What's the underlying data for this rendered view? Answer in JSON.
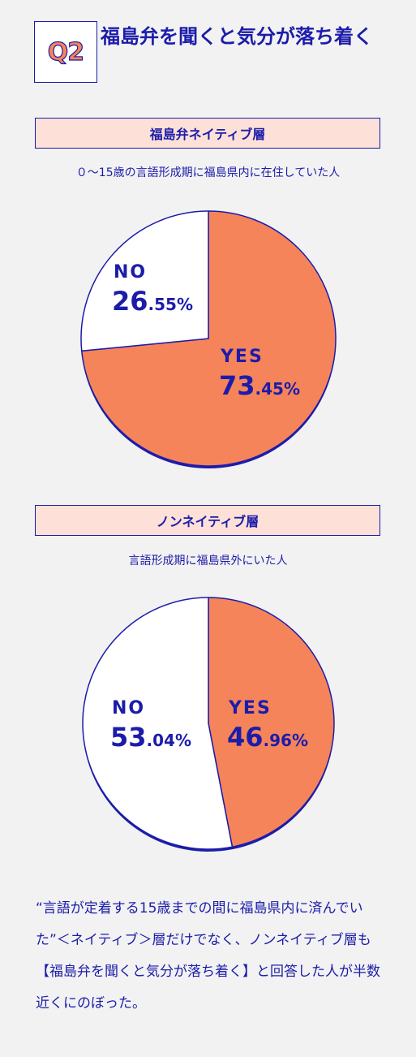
{
  "header": {
    "badge": "Q2",
    "title": "福島弁を聞くと気分が落ち着く"
  },
  "colors": {
    "accent": "#f5845a",
    "ink": "#1c1caa",
    "band": "#fde0d7",
    "background": "#f2f2f2",
    "white": "#ffffff"
  },
  "sections": [
    {
      "band_label": "福島弁ネイティブ層",
      "description": "０〜15歳の言語形成期に福島県内に在住していた人"
    },
    {
      "band_label": "ノンネイティブ層",
      "description": "言語形成期に福島県外にいた人"
    }
  ],
  "chart_data": [
    {
      "type": "pie",
      "title": "福島弁ネイティブ層",
      "slices": [
        {
          "label": "YES",
          "value": 73.45,
          "int": "73",
          "dec": ".45%",
          "color": "#f5845a"
        },
        {
          "label": "NO",
          "value": 26.55,
          "int": "26",
          "dec": ".55%",
          "color": "#ffffff"
        }
      ]
    },
    {
      "type": "pie",
      "title": "ノンネイティブ層",
      "slices": [
        {
          "label": "YES",
          "value": 46.96,
          "int": "46",
          "dec": ".96%",
          "color": "#f5845a"
        },
        {
          "label": "NO",
          "value": 53.04,
          "int": "53",
          "dec": ".04%",
          "color": "#ffffff"
        }
      ]
    }
  ],
  "footer_note": "“言語が定着する15歳までの間に福島県内に済んでいた”＜ネイティブ＞層だけでなく、ノンネイティブ層も【福島弁を聞くと気分が落ち着く】と回答した人が半数近くにのぼった。"
}
